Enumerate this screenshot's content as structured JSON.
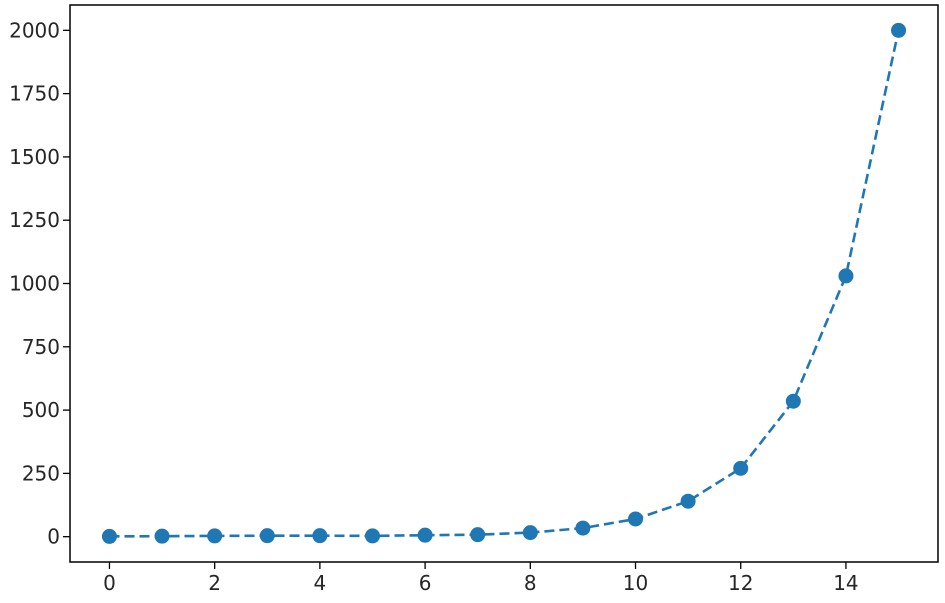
{
  "colors": {
    "series": "#1f77b4",
    "axes": "#000000",
    "text": "#262626",
    "background": "#ffffff"
  },
  "chart_data": {
    "type": "line",
    "title": "",
    "xlabel": "",
    "ylabel": "",
    "line_style": "dashed",
    "marker": "circle",
    "grid": false,
    "xlim": [
      -0.75,
      15.75
    ],
    "ylim": [
      -100,
      2100
    ],
    "xticks": [
      0,
      2,
      4,
      6,
      8,
      10,
      12,
      14
    ],
    "yticks": [
      0,
      250,
      500,
      750,
      1000,
      1250,
      1500,
      1750,
      2000
    ],
    "series": [
      {
        "x": [
          0,
          1,
          2,
          3,
          4,
          5,
          6,
          7,
          8,
          9,
          10,
          11,
          12,
          13,
          14,
          15
        ],
        "y": [
          1,
          2,
          3,
          4,
          4,
          3,
          6,
          8,
          16,
          34,
          70,
          140,
          270,
          535,
          1030,
          2000
        ]
      }
    ]
  }
}
